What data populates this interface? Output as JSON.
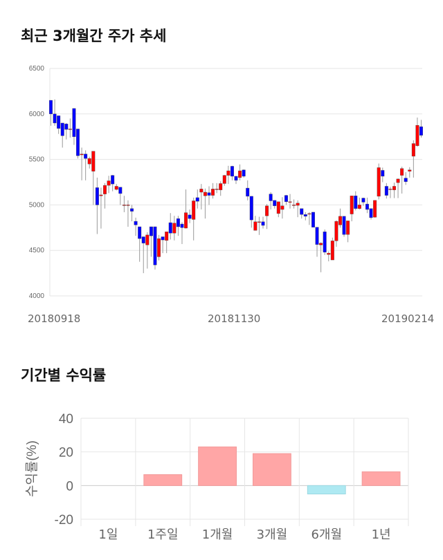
{
  "titles": {
    "price_chart": "최근 3개월간 주가 추세",
    "returns_chart": "기간별 수익률"
  },
  "colors": {
    "up": "#ff0000",
    "down": "#0000ff",
    "wick": "#999999",
    "positive_bar": "#ffa6a6",
    "negative_bar": "#aee9f2"
  },
  "chart_data": [
    {
      "type": "candlestick",
      "title": "최근 3개월간 주가 추세",
      "ylim": [
        4000,
        6500
      ],
      "y_ticks": [
        "4000",
        "4500",
        "5000",
        "5500",
        "6000",
        "6500"
      ],
      "x_labels": [
        "20180918",
        "20181130",
        "20190214"
      ],
      "grid": true,
      "ohlc_fields": [
        "open",
        "high",
        "low",
        "close"
      ],
      "candles": [
        [
          6150,
          6150,
          5870,
          6000
        ],
        [
          6000,
          6160,
          5870,
          5900
        ],
        [
          5980,
          5980,
          5780,
          5840
        ],
        [
          5900,
          5900,
          5630,
          5760
        ],
        [
          5890,
          5900,
          5720,
          5830
        ],
        [
          5835,
          5950,
          5740,
          5835
        ],
        [
          6060,
          6060,
          5660,
          5750
        ],
        [
          5835,
          5835,
          5510,
          5540
        ],
        [
          5550,
          5630,
          5270,
          5560
        ],
        [
          5560,
          5600,
          5270,
          5510
        ],
        [
          5450,
          5530,
          5400,
          5510
        ],
        [
          5370,
          5590,
          5000,
          5590
        ],
        [
          5190,
          5300,
          4680,
          5000
        ],
        [
          5100,
          5190,
          4740,
          5110
        ],
        [
          5120,
          5240,
          4960,
          5215
        ],
        [
          5215,
          5320,
          5130,
          5265
        ],
        [
          5325,
          5330,
          5150,
          5230
        ],
        [
          5170,
          5230,
          5160,
          5205
        ],
        [
          5195,
          5195,
          5000,
          5125
        ],
        [
          5000,
          5100,
          4920,
          5000
        ],
        [
          5000,
          5050,
          4760,
          5000
        ],
        [
          4960,
          5000,
          4820,
          4930
        ],
        [
          4820,
          4860,
          4660,
          4780
        ],
        [
          4760,
          4760,
          4375,
          4630
        ],
        [
          4650,
          4650,
          4250,
          4580
        ],
        [
          4560,
          4700,
          4300,
          4670
        ],
        [
          4760,
          4760,
          4430,
          4660
        ],
        [
          4760,
          4760,
          4290,
          4340
        ],
        [
          4430,
          4670,
          4390,
          4630
        ],
        [
          4650,
          4650,
          4470,
          4615
        ],
        [
          4610,
          4705,
          4470,
          4705
        ],
        [
          4805,
          4910,
          4620,
          4690
        ],
        [
          4690,
          4880,
          4610,
          4800
        ],
        [
          4850,
          4880,
          4660,
          4760
        ],
        [
          4790,
          4810,
          4570,
          4750
        ],
        [
          4745,
          5170,
          4740,
          4915
        ],
        [
          4890,
          4950,
          4800,
          4850
        ],
        [
          4840,
          5080,
          4610,
          5045
        ],
        [
          5080,
          5170,
          4960,
          5040
        ],
        [
          5140,
          5230,
          4950,
          5175
        ],
        [
          5100,
          5180,
          4850,
          5140
        ],
        [
          5135,
          5205,
          5000,
          5105
        ],
        [
          5105,
          5240,
          5070,
          5175
        ],
        [
          5175,
          5240,
          5130,
          5175
        ],
        [
          5165,
          5260,
          5100,
          5235
        ],
        [
          5235,
          5330,
          5210,
          5325
        ],
        [
          5325,
          5430,
          5230,
          5375
        ],
        [
          5425,
          5430,
          5270,
          5315
        ],
        [
          5315,
          5315,
          5230,
          5270
        ],
        [
          5300,
          5445,
          5270,
          5375
        ],
        [
          5385,
          5390,
          5300,
          5315
        ],
        [
          5185,
          5270,
          5050,
          5095
        ],
        [
          5095,
          5095,
          4750,
          4835
        ],
        [
          4720,
          4880,
          4720,
          4815
        ],
        [
          4815,
          4870,
          4670,
          4815
        ],
        [
          4815,
          4870,
          4740,
          4775
        ],
        [
          4880,
          5010,
          4735,
          4990
        ],
        [
          5120,
          5140,
          4950,
          5045
        ],
        [
          5050,
          5050,
          4960,
          4990
        ],
        [
          4905,
          5035,
          4865,
          5035
        ],
        [
          4950,
          5085,
          4850,
          4990
        ],
        [
          5105,
          5110,
          5000,
          5035
        ],
        [
          5035,
          5120,
          4960,
          5035
        ],
        [
          5000,
          5060,
          4960,
          5000
        ],
        [
          4995,
          5050,
          4865,
          5020
        ],
        [
          4960,
          4960,
          4850,
          4895
        ],
        [
          4895,
          4920,
          4830,
          4875
        ],
        [
          4905,
          4920,
          4780,
          4905
        ],
        [
          4920,
          4920,
          4755,
          4755
        ],
        [
          4755,
          4755,
          4430,
          4565
        ],
        [
          4560,
          4590,
          4260,
          4580
        ],
        [
          4705,
          4730,
          4450,
          4480
        ],
        [
          4455,
          4490,
          4380,
          4470
        ],
        [
          4395,
          4640,
          4395,
          4605
        ],
        [
          4605,
          4830,
          4540,
          4820
        ],
        [
          4780,
          4960,
          4750,
          4875
        ],
        [
          4875,
          4875,
          4650,
          4675
        ],
        [
          4675,
          4825,
          4590,
          4825
        ],
        [
          4900,
          5100,
          4820,
          5100
        ],
        [
          5100,
          5150,
          4940,
          4960
        ],
        [
          4960,
          5080,
          4950,
          5000
        ],
        [
          5075,
          5080,
          4990,
          5030
        ],
        [
          5010,
          5080,
          4910,
          4950
        ],
        [
          4960,
          4960,
          4840,
          4860
        ],
        [
          4865,
          5050,
          4860,
          5050
        ],
        [
          5095,
          5455,
          5060,
          5410
        ],
        [
          5380,
          5410,
          5250,
          5315
        ],
        [
          5205,
          5240,
          5070,
          5105
        ],
        [
          5175,
          5200,
          5075,
          5175
        ],
        [
          5165,
          5245,
          5075,
          5205
        ],
        [
          5245,
          5290,
          5075,
          5285
        ],
        [
          5325,
          5420,
          5125,
          5400
        ],
        [
          5295,
          5360,
          5220,
          5255
        ],
        [
          5370,
          5415,
          5300,
          5385
        ],
        [
          5535,
          5710,
          5300,
          5675
        ],
        [
          5650,
          5960,
          5640,
          5875
        ],
        [
          5860,
          5935,
          5740,
          5765
        ]
      ]
    },
    {
      "type": "bar",
      "title": "기간별 수익률",
      "ylabel": "수익률(%)",
      "ylim": [
        -20,
        40
      ],
      "y_ticks": [
        "40",
        "20",
        "0",
        "-20"
      ],
      "grid": true,
      "categories": [
        "1일",
        "1주일",
        "1개월",
        "3개월",
        "6개월",
        "1년"
      ],
      "values": [
        0,
        6.5,
        23.0,
        19.0,
        -5.0,
        8.2
      ]
    }
  ]
}
